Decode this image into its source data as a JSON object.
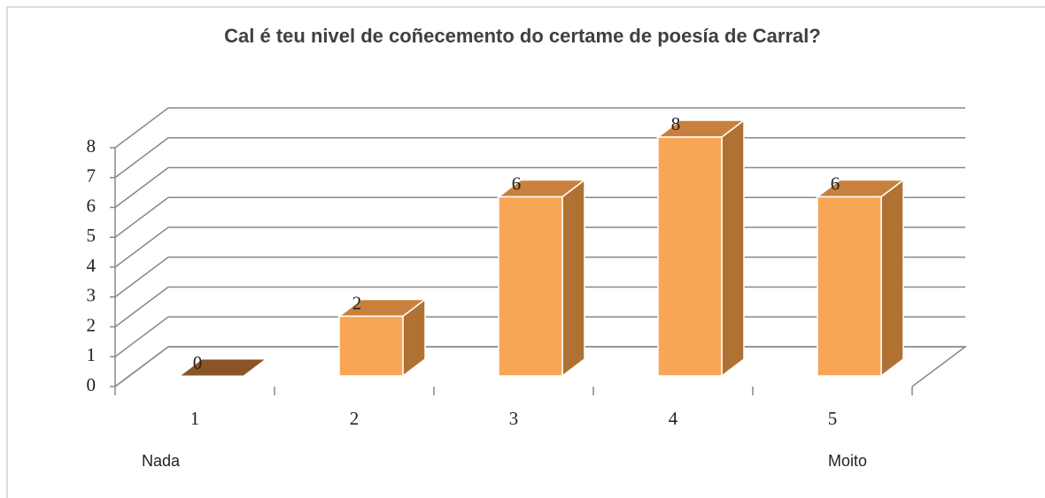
{
  "chart_data": {
    "type": "bar3d",
    "title": "Cal é teu nivel de coñecemento do certame de poesía de Carral?",
    "categories": [
      "1",
      "2",
      "3",
      "4",
      "5"
    ],
    "values": [
      0,
      2,
      6,
      8,
      6
    ],
    "ylim": [
      0,
      8
    ],
    "yticks": [
      0,
      1,
      2,
      3,
      4,
      5,
      6,
      7,
      8
    ],
    "grid": true,
    "color": "#f9a556",
    "annotations": [
      "Nada",
      "Moito"
    ]
  }
}
